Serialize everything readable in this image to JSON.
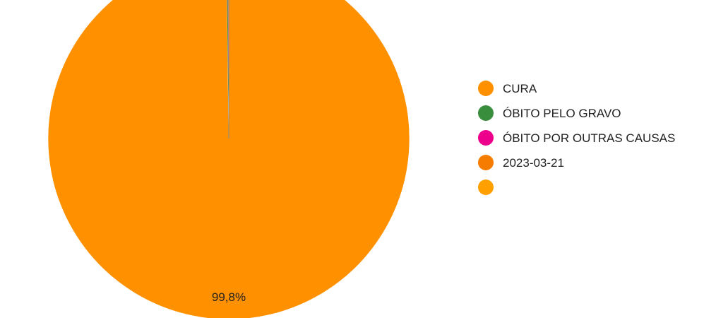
{
  "chart_data": {
    "type": "pie",
    "title": "",
    "slices": [
      {
        "label": "CURA",
        "value": 99.8,
        "color": "#FF9100"
      },
      {
        "label": "ÓBITO PELO GRAVO",
        "value": 0.1,
        "color": "#388E3C"
      },
      {
        "label": "ÓBITO POR OUTRAS CAUSAS",
        "value": 0.03,
        "color": "#EC008C"
      },
      {
        "label": "2023-03-21",
        "value": 0.04,
        "color": "#F57C00"
      },
      {
        "label": "",
        "value": 0.03,
        "color": "#FFA000"
      }
    ],
    "data_labels": [
      {
        "slice": 0,
        "text": "99,8%"
      }
    ],
    "legend_position": "right"
  }
}
